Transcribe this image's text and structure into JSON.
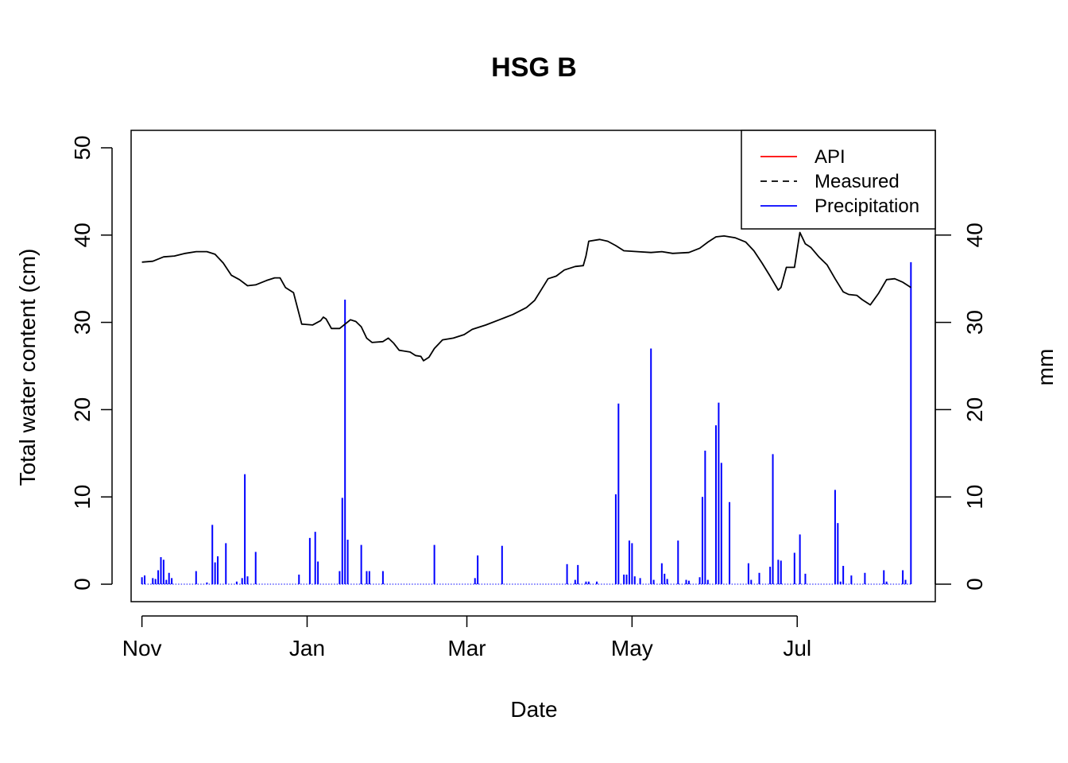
{
  "chart_data": {
    "type": "line",
    "title": "HSG B",
    "xlabel": "Date",
    "ylabel": "Total water content (cm)",
    "ylabel_right": "mm",
    "xlim": [
      "2014-10-28",
      "2015-08-21"
    ],
    "ylim": [
      -2,
      52
    ],
    "ylim_right": [
      -2,
      52
    ],
    "x_ticks": [
      {
        "date": "2014-11-01",
        "label": "Nov"
      },
      {
        "date": "2015-01-01",
        "label": "Jan"
      },
      {
        "date": "2015-03-01",
        "label": "Mar"
      },
      {
        "date": "2015-05-01",
        "label": "May"
      },
      {
        "date": "2015-07-01",
        "label": "Jul"
      }
    ],
    "y_ticks": [
      0,
      10,
      20,
      30,
      40,
      50
    ],
    "y_ticks_right": [
      0,
      10,
      20,
      30,
      40
    ],
    "legend": {
      "position": "top-right",
      "entries": [
        {
          "label": "API",
          "color": "#ff0000",
          "dash": "solid"
        },
        {
          "label": "Measured",
          "color": "#000000",
          "dash": "dashed"
        },
        {
          "label": "Precipitation",
          "color": "#0000ff",
          "dash": "solid"
        }
      ]
    },
    "series": [
      {
        "name": "Measured",
        "axis": "left",
        "color": "#000000",
        "points": [
          [
            "2014-11-01",
            36.9
          ],
          [
            "2014-11-05",
            37.0
          ],
          [
            "2014-11-09",
            37.5
          ],
          [
            "2014-11-13",
            37.6
          ],
          [
            "2014-11-17",
            37.9
          ],
          [
            "2014-11-21",
            38.1
          ],
          [
            "2014-11-25",
            38.1
          ],
          [
            "2014-11-28",
            37.8
          ],
          [
            "2014-12-01",
            36.8
          ],
          [
            "2014-12-04",
            35.4
          ],
          [
            "2014-12-07",
            34.9
          ],
          [
            "2014-12-10",
            34.2
          ],
          [
            "2014-12-13",
            34.3
          ],
          [
            "2014-12-17",
            34.8
          ],
          [
            "2014-12-20",
            35.1
          ],
          [
            "2014-12-22",
            35.1
          ],
          [
            "2014-12-24",
            34.0
          ],
          [
            "2014-12-27",
            33.4
          ],
          [
            "2014-12-30",
            29.8
          ],
          [
            "2015-01-03",
            29.7
          ],
          [
            "2015-01-06",
            30.2
          ],
          [
            "2015-01-07",
            30.6
          ],
          [
            "2015-01-08",
            30.4
          ],
          [
            "2015-01-10",
            29.3
          ],
          [
            "2015-01-13",
            29.3
          ],
          [
            "2015-01-15",
            29.8
          ],
          [
            "2015-01-17",
            30.3
          ],
          [
            "2015-01-19",
            30.1
          ],
          [
            "2015-01-21",
            29.5
          ],
          [
            "2015-01-23",
            28.2
          ],
          [
            "2015-01-25",
            27.7
          ],
          [
            "2015-01-29",
            27.8
          ],
          [
            "2015-01-31",
            28.2
          ],
          [
            "2015-02-02",
            27.6
          ],
          [
            "2015-02-04",
            26.8
          ],
          [
            "2015-02-08",
            26.6
          ],
          [
            "2015-02-10",
            26.2
          ],
          [
            "2015-02-12",
            26.1
          ],
          [
            "2015-02-13",
            25.6
          ],
          [
            "2015-02-15",
            26.0
          ],
          [
            "2015-02-17",
            27.0
          ],
          [
            "2015-02-20",
            28.0
          ],
          [
            "2015-02-24",
            28.2
          ],
          [
            "2015-02-28",
            28.6
          ],
          [
            "2015-03-03",
            29.2
          ],
          [
            "2015-03-08",
            29.7
          ],
          [
            "2015-03-13",
            30.3
          ],
          [
            "2015-03-18",
            30.9
          ],
          [
            "2015-03-23",
            31.7
          ],
          [
            "2015-03-26",
            32.5
          ],
          [
            "2015-03-29",
            34.0
          ],
          [
            "2015-03-31",
            35.0
          ],
          [
            "2015-04-03",
            35.3
          ],
          [
            "2015-04-06",
            36.0
          ],
          [
            "2015-04-10",
            36.4
          ],
          [
            "2015-04-13",
            36.5
          ],
          [
            "2015-04-14",
            37.6
          ],
          [
            "2015-04-15",
            39.3
          ],
          [
            "2015-04-19",
            39.5
          ],
          [
            "2015-04-22",
            39.3
          ],
          [
            "2015-04-25",
            38.8
          ],
          [
            "2015-04-28",
            38.2
          ],
          [
            "2015-05-03",
            38.1
          ],
          [
            "2015-05-08",
            38.0
          ],
          [
            "2015-05-12",
            38.1
          ],
          [
            "2015-05-16",
            37.9
          ],
          [
            "2015-05-22",
            38.0
          ],
          [
            "2015-05-26",
            38.5
          ],
          [
            "2015-05-29",
            39.2
          ],
          [
            "2015-06-01",
            39.8
          ],
          [
            "2015-06-04",
            39.9
          ],
          [
            "2015-06-08",
            39.7
          ],
          [
            "2015-06-12",
            39.2
          ],
          [
            "2015-06-15",
            38.2
          ],
          [
            "2015-06-18",
            36.8
          ],
          [
            "2015-06-21",
            35.3
          ],
          [
            "2015-06-24",
            33.7
          ],
          [
            "2015-06-25",
            34.0
          ],
          [
            "2015-06-27",
            36.3
          ],
          [
            "2015-06-30",
            36.3
          ],
          [
            "2015-07-02",
            40.3
          ],
          [
            "2015-07-04",
            39.0
          ],
          [
            "2015-07-06",
            38.6
          ],
          [
            "2015-07-09",
            37.5
          ],
          [
            "2015-07-12",
            36.6
          ],
          [
            "2015-07-15",
            35.0
          ],
          [
            "2015-07-18",
            33.5
          ],
          [
            "2015-07-20",
            33.2
          ],
          [
            "2015-07-23",
            33.1
          ],
          [
            "2015-07-25",
            32.6
          ],
          [
            "2015-07-28",
            32.0
          ],
          [
            "2015-07-31",
            33.3
          ],
          [
            "2015-08-03",
            34.9
          ],
          [
            "2015-08-06",
            35.0
          ],
          [
            "2015-08-09",
            34.6
          ],
          [
            "2015-08-12",
            34.0
          ]
        ]
      },
      {
        "name": "Precipitation",
        "axis": "right",
        "color": "#0000ff",
        "points": [
          [
            "2014-11-01",
            0.8
          ],
          [
            "2014-11-02",
            1.0
          ],
          [
            "2014-11-05",
            0.7
          ],
          [
            "2014-11-06",
            0.6
          ],
          [
            "2014-11-07",
            1.6
          ],
          [
            "2014-11-08",
            3.1
          ],
          [
            "2014-11-09",
            2.8
          ],
          [
            "2014-11-10",
            0.5
          ],
          [
            "2014-11-11",
            1.3
          ],
          [
            "2014-11-12",
            0.7
          ],
          [
            "2014-11-21",
            1.5
          ],
          [
            "2014-11-25",
            0.2
          ],
          [
            "2014-11-27",
            6.8
          ],
          [
            "2014-11-28",
            2.5
          ],
          [
            "2014-11-29",
            3.2
          ],
          [
            "2014-12-02",
            4.7
          ],
          [
            "2014-12-06",
            0.3
          ],
          [
            "2014-12-08",
            0.7
          ],
          [
            "2014-12-09",
            12.6
          ],
          [
            "2014-12-10",
            0.9
          ],
          [
            "2014-12-13",
            3.7
          ],
          [
            "2014-12-29",
            1.1
          ],
          [
            "2015-01-02",
            5.3
          ],
          [
            "2015-01-04",
            6.0
          ],
          [
            "2015-01-05",
            2.6
          ],
          [
            "2015-01-13",
            1.5
          ],
          [
            "2015-01-14",
            9.9
          ],
          [
            "2015-01-15",
            32.6
          ],
          [
            "2015-01-16",
            5.1
          ],
          [
            "2015-01-21",
            4.5
          ],
          [
            "2015-01-23",
            1.5
          ],
          [
            "2015-01-24",
            1.5
          ],
          [
            "2015-01-29",
            1.5
          ],
          [
            "2015-02-17",
            4.5
          ],
          [
            "2015-03-04",
            0.7
          ],
          [
            "2015-03-05",
            3.3
          ],
          [
            "2015-03-14",
            4.4
          ],
          [
            "2015-04-07",
            2.3
          ],
          [
            "2015-04-10",
            0.5
          ],
          [
            "2015-04-11",
            2.2
          ],
          [
            "2015-04-14",
            0.3
          ],
          [
            "2015-04-15",
            0.3
          ],
          [
            "2015-04-18",
            0.3
          ],
          [
            "2015-04-25",
            10.3
          ],
          [
            "2015-04-26",
            20.7
          ],
          [
            "2015-04-28",
            1.1
          ],
          [
            "2015-04-29",
            1.1
          ],
          [
            "2015-04-30",
            5.0
          ],
          [
            "2015-05-01",
            4.7
          ],
          [
            "2015-05-02",
            0.9
          ],
          [
            "2015-05-04",
            0.7
          ],
          [
            "2015-05-08",
            27.0
          ],
          [
            "2015-05-09",
            0.5
          ],
          [
            "2015-05-12",
            2.4
          ],
          [
            "2015-05-13",
            1.2
          ],
          [
            "2015-05-14",
            0.6
          ],
          [
            "2015-05-18",
            5.0
          ],
          [
            "2015-05-21",
            0.5
          ],
          [
            "2015-05-22",
            0.4
          ],
          [
            "2015-05-26",
            0.8
          ],
          [
            "2015-05-27",
            10.0
          ],
          [
            "2015-05-28",
            15.3
          ],
          [
            "2015-05-29",
            0.5
          ],
          [
            "2015-06-01",
            18.2
          ],
          [
            "2015-06-02",
            20.8
          ],
          [
            "2015-06-03",
            13.9
          ],
          [
            "2015-06-06",
            9.4
          ],
          [
            "2015-06-13",
            2.4
          ],
          [
            "2015-06-14",
            0.5
          ],
          [
            "2015-06-17",
            1.3
          ],
          [
            "2015-06-21",
            2.0
          ],
          [
            "2015-06-22",
            14.9
          ],
          [
            "2015-06-24",
            2.8
          ],
          [
            "2015-06-25",
            2.7
          ],
          [
            "2015-06-30",
            3.6
          ],
          [
            "2015-07-02",
            5.7
          ],
          [
            "2015-07-04",
            1.2
          ],
          [
            "2015-07-15",
            10.8
          ],
          [
            "2015-07-16",
            7.0
          ],
          [
            "2015-07-17",
            0.3
          ],
          [
            "2015-07-18",
            2.1
          ],
          [
            "2015-07-21",
            1.0
          ],
          [
            "2015-07-26",
            1.3
          ],
          [
            "2015-08-02",
            1.6
          ],
          [
            "2015-08-03",
            0.3
          ],
          [
            "2015-08-09",
            1.6
          ],
          [
            "2015-08-10",
            0.5
          ],
          [
            "2015-08-12",
            36.9
          ]
        ]
      }
    ]
  }
}
